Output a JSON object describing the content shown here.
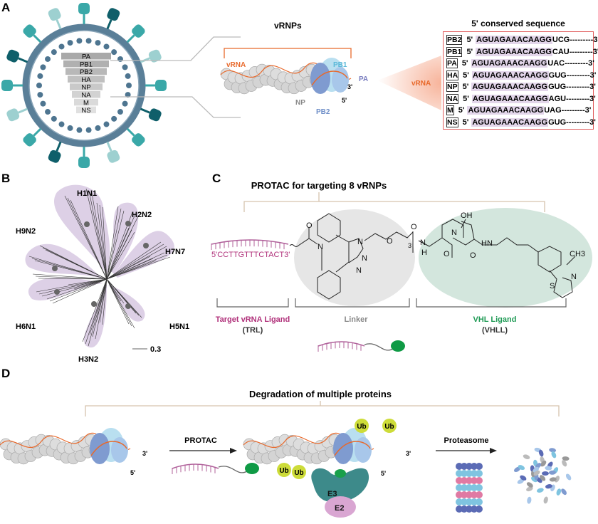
{
  "panels": {
    "a": "A",
    "b": "B",
    "c": "C",
    "d": "D"
  },
  "panel_a": {
    "segments": [
      "PA",
      "PB1",
      "PB2",
      "HA",
      "NP",
      "NA",
      "M",
      "NS"
    ],
    "vrnp_title": "vRNPs",
    "vrna_label": "vRNA",
    "np_label": "NP",
    "pb1_label": "PB1",
    "pb2_label": "PB2",
    "pa_label": "PA",
    "end3": "3'",
    "end5": "5'",
    "vrna_arrow_label": "vRNA",
    "seq_title": "5' conserved sequence",
    "sequences": [
      {
        "seg": "PB2",
        "p5": "5'",
        "cons": "AGUAGAAACAAGG",
        "tail": "UCG---------3'"
      },
      {
        "seg": "PB1",
        "p5": "5'",
        "cons": "AGUAGAAACAAGG",
        "tail": "CAU---------3'"
      },
      {
        "seg": "PA",
        "p5": "5'",
        "cons": "AGUAGAAACAAGG",
        "tail": "UAC---------3'"
      },
      {
        "seg": "HA",
        "p5": "5'",
        "cons": "AGUAGAAACAAGG",
        "tail": "GUG---------3'"
      },
      {
        "seg": "NP",
        "p5": "5'",
        "cons": "AGUAGAAACAAGG",
        "tail": "GUG---------3'"
      },
      {
        "seg": "NA",
        "p5": "5'",
        "cons": "AGUAGAAACAAGG",
        "tail": "AGU---------3'"
      },
      {
        "seg": "M",
        "p5": "5'",
        "cons": "AGUAGAAACAAGG",
        "tail": "UAG---------3'"
      },
      {
        "seg": "NS",
        "p5": "5'",
        "cons": "AGUAGAAACAAGG",
        "tail": "GUG---------3'"
      }
    ]
  },
  "panel_b": {
    "clades": [
      "H1N1",
      "H2N2",
      "H7N7",
      "H9N2",
      "H6N1",
      "H5N1",
      "H3N2"
    ],
    "scale": "0.3"
  },
  "panel_c": {
    "title": "PROTAC for targeting 8 vRNPs",
    "oligo": "5'CCTTGTTTCTACT3'",
    "trl": "Target vRNA Ligand",
    "trl_abbr": "(TRL)",
    "linker": "Linker",
    "vhl": "VHL Ligand",
    "vhl_abbr": "(VHLL)",
    "atoms": {
      "o": "O",
      "n": "N",
      "oh": "OH",
      "nh": "NH",
      "hn": "HN",
      "h": "H",
      "ch3": "CH3",
      "s": "S",
      "sub3": "3"
    }
  },
  "panel_d": {
    "title": "Degradation of multiple proteins",
    "protac": "PROTAC",
    "proteasome": "Proteasome",
    "ub": "Ub",
    "e3": "E3",
    "e2": "E2",
    "end3": "3'",
    "end5": "5'"
  },
  "colors": {
    "trl": "#b0307a",
    "linker": "#888888",
    "vhl": "#1f9a55",
    "vrna": "#e8692b",
    "virus": "#5a7f98",
    "spike": "#3aa8a8"
  }
}
